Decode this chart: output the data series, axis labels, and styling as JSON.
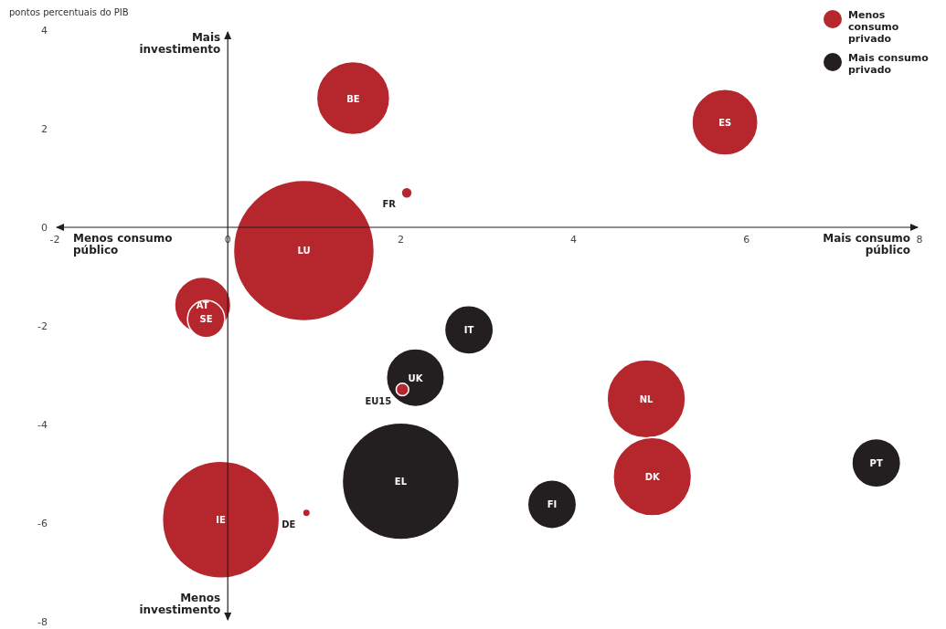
{
  "chart_data": {
    "type": "bubble",
    "ylabel": "pontos percentuais do PIB",
    "xlim": [
      -2,
      8
    ],
    "xticks": [
      -2,
      0,
      2,
      4,
      6,
      8
    ],
    "ylim": [
      -8,
      4
    ],
    "yticks": [
      4,
      2,
      0,
      -2,
      -4,
      -6,
      -8
    ],
    "legend": "top right",
    "series": [
      {
        "name": "Menos consumo privado",
        "color": "#b5262d",
        "x": [
          1.45,
          5.75,
          2.07,
          0.88,
          -0.29,
          -0.25,
          4.84,
          4.91,
          -0.08,
          0.91,
          2.02
        ],
        "values": [
          2.62,
          2.13,
          0.7,
          -0.47,
          -1.58,
          -1.86,
          -3.48,
          -5.06,
          -5.93,
          -5.79,
          -3.29
        ],
        "sizes": [
          0.27,
          0.22,
          0.006,
          1,
          0.16,
          0.07,
          0.31,
          0.31,
          0.69,
          0.003,
          0.008
        ]
      },
      {
        "name": "Mais consumo privado",
        "color": "#231f20",
        "x": [
          2.79,
          2.17,
          2.0,
          3.75,
          7.5
        ],
        "values": [
          -2.08,
          -3.05,
          -5.15,
          -5.62,
          -4.78
        ],
        "sizes": [
          0.12,
          0.17,
          0.69,
          0.12,
          0.12
        ]
      }
    ],
    "annotations": [
      "Mais investimento",
      "Menos investimento",
      "Menos consumo público",
      "Mais consumo público",
      {
        "text": "BE",
        "x": 1.45,
        "y": 2.62
      },
      {
        "text": "ES",
        "x": 5.75,
        "y": 2.13
      },
      {
        "text": "FR",
        "x": 2.07,
        "y": 0.7
      },
      {
        "text": "LU",
        "x": 0.88,
        "y": -0.47
      },
      {
        "text": "AT",
        "x": -0.29,
        "y": -1.58
      },
      {
        "text": "SE",
        "x": -0.25,
        "y": -1.86
      },
      {
        "text": "NL",
        "x": 4.84,
        "y": -3.48
      },
      {
        "text": "DK",
        "x": 4.91,
        "y": -5.06
      },
      {
        "text": "IE",
        "x": -0.08,
        "y": -5.93
      },
      {
        "text": "DE",
        "x": 0.91,
        "y": -5.79
      },
      {
        "text": "EU15",
        "x": 2.02,
        "y": -3.29
      },
      {
        "text": "IT",
        "x": 2.79,
        "y": -2.08
      },
      {
        "text": "UK",
        "x": 2.17,
        "y": -3.05
      },
      {
        "text": "EL",
        "x": 2.0,
        "y": -5.15
      },
      {
        "text": "FI",
        "x": 3.75,
        "y": -5.62
      },
      {
        "text": "PT",
        "x": 7.5,
        "y": -4.78
      }
    ]
  }
}
